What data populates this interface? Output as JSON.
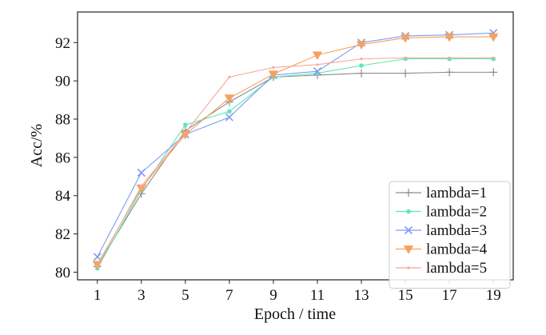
{
  "chart_data": {
    "type": "line",
    "xlabel": "Epoch / time",
    "ylabel": "Acc/%",
    "x": [
      1,
      3,
      5,
      7,
      9,
      11,
      13,
      15,
      17,
      19
    ],
    "xticks": [
      1,
      3,
      5,
      7,
      9,
      11,
      13,
      15,
      17,
      19
    ],
    "yticks": [
      80,
      82,
      84,
      86,
      88,
      90,
      92
    ],
    "xlim": [
      0.1,
      19.9
    ],
    "ylim": [
      79.6,
      93.6
    ],
    "grid": false,
    "legend_position": "lower-right",
    "series": [
      {
        "name": "lambda=1",
        "color": "#8c8c8c",
        "marker": "plus",
        "values": [
          80.3,
          84.1,
          87.4,
          88.9,
          90.2,
          90.3,
          90.4,
          90.4,
          90.45,
          90.45
        ]
      },
      {
        "name": "lambda=2",
        "color": "#5ee6b4",
        "marker": "dot",
        "values": [
          80.2,
          84.3,
          87.7,
          88.4,
          90.2,
          90.4,
          90.8,
          91.15,
          91.15,
          91.15
        ]
      },
      {
        "name": "lambda=3",
        "color": "#7f9cf5",
        "marker": "x",
        "values": [
          80.8,
          85.2,
          87.2,
          88.1,
          90.3,
          90.5,
          92.0,
          92.35,
          92.4,
          92.5
        ]
      },
      {
        "name": "lambda=4",
        "color": "#f4a261",
        "marker": "triangle-down",
        "values": [
          80.4,
          84.4,
          87.2,
          89.1,
          90.35,
          91.35,
          91.9,
          92.25,
          92.3,
          92.3
        ]
      },
      {
        "name": "lambda=5",
        "color": "#f7a79a",
        "marker": "small-dot",
        "values": [
          80.3,
          84.5,
          87.3,
          90.2,
          90.7,
          90.85,
          91.15,
          91.2,
          91.2,
          91.2
        ]
      }
    ]
  }
}
